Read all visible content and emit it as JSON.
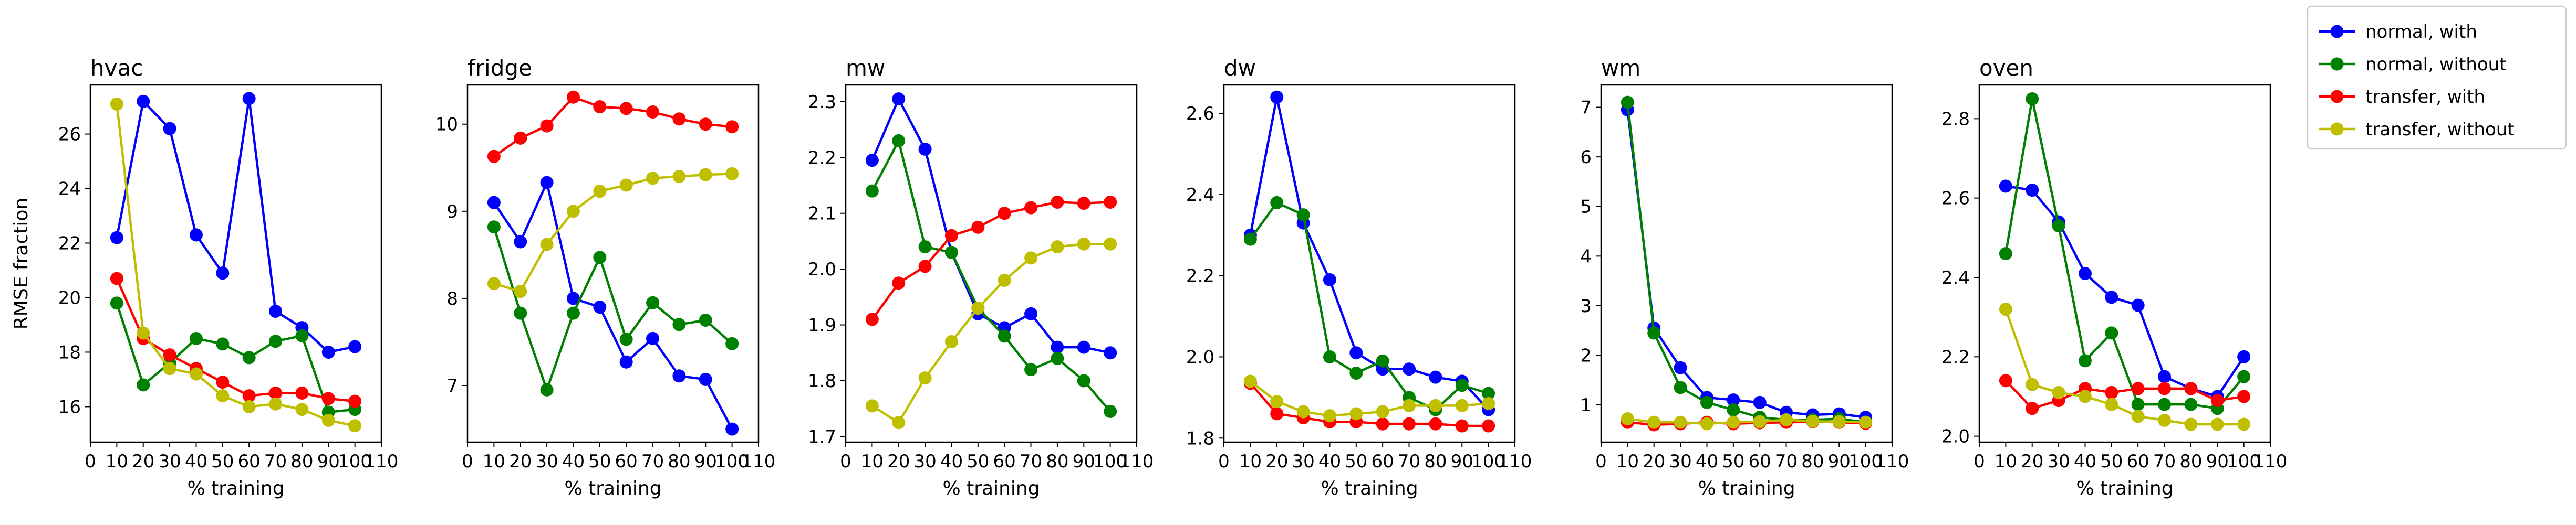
{
  "figure": {
    "xlabel": "% training",
    "ylabel": "RMSE fraction"
  },
  "series_styles": [
    {
      "name": "normal, with",
      "color": "#0000ff"
    },
    {
      "name": "normal, without",
      "color": "#008000"
    },
    {
      "name": "transfer, with",
      "color": "#ff0000"
    },
    {
      "name": "transfer, without",
      "color": "#bfbf00"
    }
  ],
  "chart_data": [
    {
      "type": "line",
      "title": "hvac",
      "xlabel": "% training",
      "ylabel": "RMSE fraction",
      "x": [
        10,
        20,
        30,
        40,
        50,
        60,
        70,
        80,
        90,
        100
      ],
      "xlim": [
        0,
        110
      ],
      "ylim": [
        14.7,
        27.8
      ],
      "xticks": [
        "0",
        "10",
        "20",
        "30",
        "40",
        "50",
        "60",
        "70",
        "80",
        "90",
        "100",
        "110"
      ],
      "yticks": [
        16,
        18,
        20,
        22,
        24,
        26
      ],
      "series": [
        {
          "name": "normal, with",
          "values": [
            22.2,
            27.2,
            26.2,
            22.3,
            20.9,
            27.3,
            19.5,
            18.9,
            18.0,
            18.2
          ]
        },
        {
          "name": "normal, without",
          "values": [
            19.8,
            16.8,
            17.6,
            18.5,
            18.3,
            17.8,
            18.4,
            18.6,
            15.8,
            15.9
          ]
        },
        {
          "name": "transfer, with",
          "values": [
            20.7,
            18.5,
            17.9,
            17.4,
            16.9,
            16.4,
            16.5,
            16.5,
            16.3,
            16.2
          ]
        },
        {
          "name": "transfer, without",
          "values": [
            27.1,
            18.7,
            17.4,
            17.2,
            16.4,
            16.0,
            16.1,
            15.9,
            15.5,
            15.3
          ]
        }
      ]
    },
    {
      "type": "line",
      "title": "fridge",
      "xlabel": "% training",
      "ylabel": "",
      "x": [
        10,
        20,
        30,
        40,
        50,
        60,
        70,
        80,
        90,
        100
      ],
      "xlim": [
        0,
        110
      ],
      "ylim": [
        6.35,
        10.45
      ],
      "xticks": [
        "0",
        "10",
        "20",
        "30",
        "40",
        "50",
        "60",
        "70",
        "80",
        "90",
        "100",
        "110"
      ],
      "yticks": [
        7,
        8,
        9,
        10
      ],
      "series": [
        {
          "name": "normal, with",
          "values": [
            9.1,
            8.65,
            9.33,
            8.0,
            7.9,
            7.27,
            7.54,
            7.11,
            7.07,
            6.5
          ]
        },
        {
          "name": "normal, without",
          "values": [
            8.82,
            7.83,
            6.95,
            7.83,
            8.47,
            7.53,
            7.95,
            7.7,
            7.75,
            7.48
          ]
        },
        {
          "name": "transfer, with",
          "values": [
            9.63,
            9.84,
            9.98,
            10.31,
            10.2,
            10.18,
            10.14,
            10.06,
            10.0,
            9.97
          ]
        },
        {
          "name": "transfer, without",
          "values": [
            8.17,
            8.08,
            8.62,
            9.0,
            9.23,
            9.3,
            9.38,
            9.4,
            9.42,
            9.43
          ]
        }
      ]
    },
    {
      "type": "line",
      "title": "mw",
      "xlabel": "% training",
      "ylabel": "",
      "x": [
        10,
        20,
        30,
        40,
        50,
        60,
        70,
        80,
        90,
        100
      ],
      "xlim": [
        0,
        110
      ],
      "ylim": [
        1.69,
        2.33
      ],
      "xticks": [
        "0",
        "10",
        "20",
        "30",
        "40",
        "50",
        "60",
        "70",
        "80",
        "90",
        "100",
        "110"
      ],
      "yticks": [
        "1.7",
        "1.8",
        "1.9",
        "2.0",
        "2.1",
        "2.2",
        "2.3"
      ],
      "series": [
        {
          "name": "normal, with",
          "values": [
            2.195,
            2.305,
            2.215,
            2.03,
            1.92,
            1.895,
            1.92,
            1.86,
            1.86,
            1.85
          ]
        },
        {
          "name": "normal, without",
          "values": [
            2.14,
            2.23,
            2.04,
            2.03,
            1.93,
            1.88,
            1.82,
            1.84,
            1.8,
            1.745
          ]
        },
        {
          "name": "transfer, with",
          "values": [
            1.91,
            1.975,
            2.005,
            2.06,
            2.075,
            2.1,
            2.11,
            2.12,
            2.118,
            2.12
          ]
        },
        {
          "name": "transfer, without",
          "values": [
            1.755,
            1.725,
            1.805,
            1.87,
            1.93,
            1.98,
            2.02,
            2.04,
            2.045,
            2.045
          ]
        }
      ]
    },
    {
      "type": "line",
      "title": "dw",
      "xlabel": "% training",
      "ylabel": "",
      "x": [
        10,
        20,
        30,
        40,
        50,
        60,
        70,
        80,
        90,
        100
      ],
      "xlim": [
        0,
        110
      ],
      "ylim": [
        1.79,
        2.67
      ],
      "xticks": [
        "0",
        "10",
        "20",
        "30",
        "40",
        "50",
        "60",
        "70",
        "80",
        "90",
        "100",
        "110"
      ],
      "yticks": [
        "1.8",
        "2.0",
        "2.2",
        "2.4",
        "2.6"
      ],
      "series": [
        {
          "name": "normal, with",
          "values": [
            2.3,
            2.64,
            2.33,
            2.19,
            2.01,
            1.97,
            1.97,
            1.95,
            1.94,
            1.87
          ]
        },
        {
          "name": "normal, without",
          "values": [
            2.29,
            2.38,
            2.35,
            2.0,
            1.96,
            1.99,
            1.9,
            1.87,
            1.93,
            1.91
          ]
        },
        {
          "name": "transfer, with",
          "values": [
            1.935,
            1.86,
            1.85,
            1.84,
            1.84,
            1.835,
            1.835,
            1.835,
            1.83,
            1.83
          ]
        },
        {
          "name": "transfer, without",
          "values": [
            1.94,
            1.89,
            1.865,
            1.855,
            1.86,
            1.865,
            1.88,
            1.88,
            1.88,
            1.885
          ]
        }
      ]
    },
    {
      "type": "line",
      "title": "wm",
      "xlabel": "% training",
      "ylabel": "",
      "x": [
        10,
        20,
        30,
        40,
        50,
        60,
        70,
        80,
        90,
        100
      ],
      "xlim": [
        0,
        110
      ],
      "ylim": [
        0.25,
        7.45
      ],
      "xticks": [
        "0",
        "10",
        "20",
        "30",
        "40",
        "50",
        "60",
        "70",
        "80",
        "90",
        "100",
        "110"
      ],
      "yticks": [
        1,
        2,
        3,
        4,
        5,
        6,
        7
      ],
      "series": [
        {
          "name": "normal, with",
          "values": [
            6.95,
            2.55,
            1.75,
            1.15,
            1.1,
            1.05,
            0.85,
            0.8,
            0.82,
            0.75
          ]
        },
        {
          "name": "normal, without",
          "values": [
            7.1,
            2.45,
            1.35,
            1.05,
            0.9,
            0.75,
            0.7,
            0.7,
            0.72,
            0.65
          ]
        },
        {
          "name": "transfer, with",
          "values": [
            0.65,
            0.6,
            0.62,
            0.65,
            0.62,
            0.64,
            0.65,
            0.66,
            0.65,
            0.63
          ]
        },
        {
          "name": "transfer, without",
          "values": [
            0.72,
            0.65,
            0.65,
            0.62,
            0.65,
            0.66,
            0.7,
            0.67,
            0.66,
            0.65
          ]
        }
      ]
    },
    {
      "type": "line",
      "title": "oven",
      "xlabel": "% training",
      "ylabel": "",
      "x": [
        10,
        20,
        30,
        40,
        50,
        60,
        70,
        80,
        90,
        100
      ],
      "xlim": [
        0,
        110
      ],
      "ylim": [
        1.985,
        2.885
      ],
      "xticks": [
        "0",
        "10",
        "20",
        "30",
        "40",
        "50",
        "60",
        "70",
        "80",
        "90",
        "100",
        "110"
      ],
      "yticks": [
        "2.0",
        "2.2",
        "2.4",
        "2.6",
        "2.8"
      ],
      "series": [
        {
          "name": "normal, with",
          "values": [
            2.63,
            2.62,
            2.54,
            2.41,
            2.35,
            2.33,
            2.15,
            2.12,
            2.1,
            2.2
          ]
        },
        {
          "name": "normal, without",
          "values": [
            2.46,
            2.85,
            2.53,
            2.19,
            2.26,
            2.08,
            2.08,
            2.08,
            2.07,
            2.15
          ]
        },
        {
          "name": "transfer, with",
          "values": [
            2.14,
            2.07,
            2.09,
            2.12,
            2.11,
            2.12,
            2.12,
            2.12,
            2.09,
            2.1
          ]
        },
        {
          "name": "transfer, without",
          "values": [
            2.32,
            2.13,
            2.11,
            2.1,
            2.08,
            2.05,
            2.04,
            2.03,
            2.03,
            2.03
          ]
        }
      ]
    }
  ]
}
